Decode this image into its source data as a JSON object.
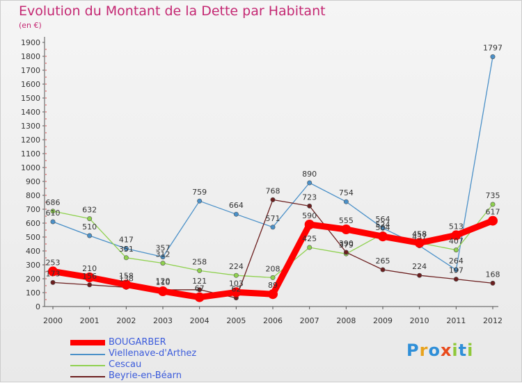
{
  "chart_data": {
    "type": "line",
    "title": "Evolution du Montant de la Dette par Habitant",
    "subtitle": "(en €)",
    "x": [
      "2000",
      "2001",
      "2002",
      "2003",
      "2004",
      "2005",
      "2006",
      "2007",
      "2008",
      "2009",
      "2010",
      "2011",
      "2012"
    ],
    "ylim": [
      0,
      1900
    ],
    "yticks": [
      0,
      100,
      200,
      300,
      400,
      500,
      600,
      700,
      800,
      900,
      1000,
      1100,
      1200,
      1300,
      1400,
      1500,
      1600,
      1700,
      1800,
      1900
    ],
    "grid": false,
    "legend_position": "bottom-left",
    "series": [
      {
        "name": "BOUGARBER",
        "color": "#ff0000",
        "values": [
          253,
          210,
          158,
          110,
          67,
          103,
          89,
          590,
          555,
          504,
          458,
          513,
          617
        ]
      },
      {
        "name": "Viellenave-d'Arthez",
        "color": "#4a90c8",
        "values": [
          610,
          510,
          417,
          357,
          759,
          664,
          571,
          890,
          754,
          564,
          437,
          264,
          1797
        ]
      },
      {
        "name": "Cescau",
        "color": "#8fd14f",
        "values": [
          686,
          632,
          351,
          312,
          258,
          224,
          208,
          425,
          379,
          524,
          458,
          407,
          735
        ]
      },
      {
        "name": "Beyrie-en-Béarn",
        "color": "#6b1e1e",
        "values": [
          173,
          156,
          138,
          120,
          121,
          62,
          768,
          723,
          390,
          265,
          224,
          197,
          168
        ]
      }
    ]
  },
  "legend": {
    "items": [
      {
        "label": "BOUGARBER",
        "color": "#ff0000"
      },
      {
        "label": "Viellenave-d'Arthez",
        "color": "#4a90c8"
      },
      {
        "label": "Cescau",
        "color": "#8fd14f"
      },
      {
        "label": "Beyrie-en-Béarn",
        "color": "#6b1e1e"
      }
    ]
  },
  "logo": {
    "letters": [
      "P",
      "r",
      "o",
      "x",
      "i",
      "t",
      "i"
    ]
  }
}
